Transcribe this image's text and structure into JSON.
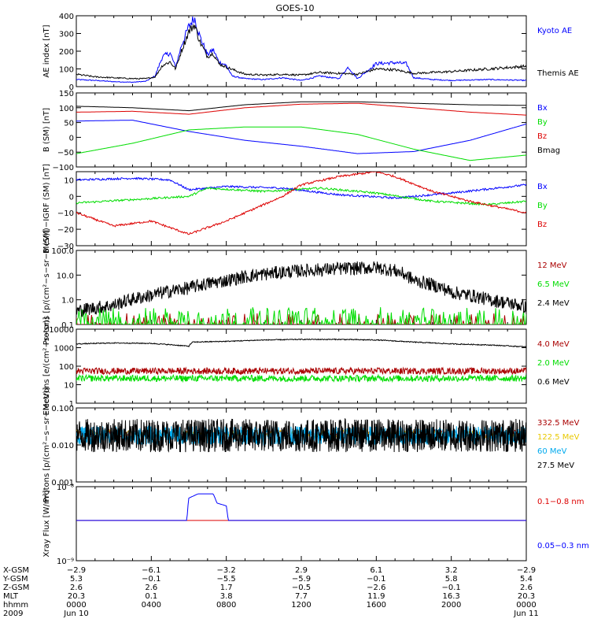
{
  "title": "GOES-10",
  "chart_data": [
    {
      "type": "line",
      "ylabel": "AE index [nT]",
      "ylim": [
        0,
        400
      ],
      "yticks": [
        0,
        100,
        200,
        300,
        400
      ],
      "ytick_labels": [
        "0",
        "100",
        "200",
        "300",
        "400"
      ],
      "x_hours": [
        0,
        24
      ],
      "series": [
        {
          "name": "Kyoto AE",
          "color": "#0000ff",
          "points": [
            [
              0,
              40
            ],
            [
              1,
              35
            ],
            [
              2,
              28
            ],
            [
              3,
              25
            ],
            [
              3.7,
              30
            ],
            [
              4.2,
              60
            ],
            [
              4.6,
              170
            ],
            [
              5,
              190
            ],
            [
              5.3,
              110
            ],
            [
              5.6,
              230
            ],
            [
              6,
              340
            ],
            [
              6.3,
              390
            ],
            [
              6.6,
              280
            ],
            [
              7,
              180
            ],
            [
              7.3,
              210
            ],
            [
              7.6,
              140
            ],
            [
              8,
              120
            ],
            [
              8.3,
              60
            ],
            [
              9,
              45
            ],
            [
              10,
              40
            ],
            [
              11,
              50
            ],
            [
              12,
              35
            ],
            [
              13,
              60
            ],
            [
              14,
              45
            ],
            [
              14.5,
              110
            ],
            [
              15,
              45
            ],
            [
              16,
              130
            ],
            [
              17,
              135
            ],
            [
              17.6,
              130
            ],
            [
              18,
              50
            ],
            [
              19,
              40
            ],
            [
              20,
              35
            ],
            [
              22,
              40
            ],
            [
              24,
              35
            ]
          ]
        },
        {
          "name": "Themis AE",
          "color": "#000000",
          "points": [
            [
              0,
              70
            ],
            [
              1,
              55
            ],
            [
              2,
              50
            ],
            [
              3,
              45
            ],
            [
              3.7,
              45
            ],
            [
              4.2,
              55
            ],
            [
              4.6,
              120
            ],
            [
              5,
              140
            ],
            [
              5.3,
              100
            ],
            [
              5.6,
              200
            ],
            [
              6,
              310
            ],
            [
              6.3,
              350
            ],
            [
              6.6,
              250
            ],
            [
              7,
              170
            ],
            [
              7.3,
              190
            ],
            [
              7.6,
              130
            ],
            [
              8,
              110
            ],
            [
              9,
              70
            ],
            [
              10,
              65
            ],
            [
              11,
              70
            ],
            [
              12,
              65
            ],
            [
              13,
              80
            ],
            [
              14,
              75
            ],
            [
              15,
              70
            ],
            [
              16,
              100
            ],
            [
              17,
              95
            ],
            [
              18,
              75
            ],
            [
              19,
              80
            ],
            [
              20,
              85
            ],
            [
              22,
              100
            ],
            [
              24,
              115
            ]
          ]
        }
      ]
    },
    {
      "type": "line",
      "ylabel": "B (SM) [nT]",
      "ylim": [
        -100,
        150
      ],
      "yticks": [
        -100,
        -50,
        0,
        50,
        100,
        150
      ],
      "ytick_labels": [
        "−100",
        "−50",
        "0",
        "50",
        "100",
        "150"
      ],
      "x_hours": [
        0,
        24
      ],
      "series": [
        {
          "name": "Bx",
          "color": "#0000ff",
          "points": [
            [
              0,
              55
            ],
            [
              3,
              58
            ],
            [
              6,
              20
            ],
            [
              9,
              -10
            ],
            [
              12,
              -30
            ],
            [
              15,
              -55
            ],
            [
              18,
              -48
            ],
            [
              21,
              -10
            ],
            [
              24,
              45
            ]
          ]
        },
        {
          "name": "By",
          "color": "#00dd00",
          "points": [
            [
              0,
              -55
            ],
            [
              3,
              -20
            ],
            [
              6,
              25
            ],
            [
              9,
              35
            ],
            [
              12,
              35
            ],
            [
              15,
              10
            ],
            [
              18,
              -40
            ],
            [
              21,
              -78
            ],
            [
              24,
              -60
            ]
          ]
        },
        {
          "name": "Bz",
          "color": "#dd0000",
          "points": [
            [
              0,
              85
            ],
            [
              3,
              88
            ],
            [
              6,
              78
            ],
            [
              9,
              100
            ],
            [
              12,
              112
            ],
            [
              15,
              115
            ],
            [
              18,
              100
            ],
            [
              21,
              85
            ],
            [
              24,
              75
            ]
          ]
        },
        {
          "name": "Bmag",
          "color": "#000000",
          "points": [
            [
              0,
              105
            ],
            [
              3,
              100
            ],
            [
              6,
              90
            ],
            [
              9,
              110
            ],
            [
              12,
              120
            ],
            [
              15,
              120
            ],
            [
              18,
              115
            ],
            [
              21,
              110
            ],
            [
              24,
              108
            ]
          ]
        }
      ]
    },
    {
      "type": "line",
      "ylabel": "B (SM)−IGRF (SM) [nT]",
      "ylim": [
        -30,
        15
      ],
      "yticks": [
        -30,
        -20,
        -10,
        0,
        10
      ],
      "ytick_labels": [
        "−30",
        "−20",
        "−10",
        "0",
        "10"
      ],
      "x_hours": [
        0,
        24
      ],
      "series": [
        {
          "name": "Bx",
          "color": "#0000ff",
          "points": [
            [
              0,
              10
            ],
            [
              3,
              11
            ],
            [
              5,
              10
            ],
            [
              6,
              4
            ],
            [
              8,
              6
            ],
            [
              11,
              5
            ],
            [
              14,
              1
            ],
            [
              17,
              -1
            ],
            [
              20,
              2
            ],
            [
              24,
              7
            ]
          ]
        },
        {
          "name": "By",
          "color": "#00dd00",
          "points": [
            [
              0,
              -4
            ],
            [
              3,
              -2
            ],
            [
              6,
              0
            ],
            [
              7,
              5
            ],
            [
              10,
              3
            ],
            [
              13,
              5
            ],
            [
              16,
              2
            ],
            [
              19,
              -3
            ],
            [
              22,
              -5
            ],
            [
              24,
              -3
            ]
          ]
        },
        {
          "name": "Bz",
          "color": "#dd0000",
          "points": [
            [
              0,
              -10
            ],
            [
              2,
              -18
            ],
            [
              4,
              -15
            ],
            [
              6,
              -23
            ],
            [
              8,
              -15
            ],
            [
              10,
              -5
            ],
            [
              11,
              0
            ],
            [
              12,
              7
            ],
            [
              14,
              12
            ],
            [
              16,
              15
            ],
            [
              17,
              12
            ],
            [
              19,
              3
            ],
            [
              21,
              -3
            ],
            [
              24,
              -10
            ]
          ]
        }
      ]
    },
    {
      "type": "line",
      "ylabel": "Protons [p/(cm²−s−sr−MeV)]",
      "ylog": true,
      "ylim": [
        0.1,
        100
      ],
      "yticks": [
        0.1,
        1,
        10,
        100
      ],
      "ytick_labels": [
        "0.1",
        "1.0",
        "10.0",
        "100.0"
      ],
      "x_hours": [
        0,
        24
      ],
      "series": [
        {
          "name": "12 MeV",
          "color": "#aa0000",
          "points": []
        },
        {
          "name": "6.5 MeV",
          "color": "#00dd00",
          "points": []
        },
        {
          "name": "2.4 MeV",
          "color": "#000000",
          "points": [
            [
              0,
              0.35
            ],
            [
              2,
              0.6
            ],
            [
              4,
              1.5
            ],
            [
              6,
              3
            ],
            [
              8,
              6
            ],
            [
              10,
              11
            ],
            [
              12,
              15
            ],
            [
              14,
              18
            ],
            [
              16,
              20
            ],
            [
              17,
              15
            ],
            [
              18,
              6
            ],
            [
              20,
              2
            ],
            [
              22,
              1
            ],
            [
              24,
              0.5
            ]
          ]
        }
      ]
    },
    {
      "type": "line",
      "ylabel": "Electrons [e/(cm²−s−sr)]",
      "ylog": true,
      "ylim": [
        1,
        10000
      ],
      "yticks": [
        1,
        10,
        100,
        1000,
        10000
      ],
      "ytick_labels": [
        "1",
        "10",
        "100",
        "1000",
        "10000"
      ],
      "x_hours": [
        0,
        24
      ],
      "series": [
        {
          "name": "4.0 MeV",
          "color": "#aa0000",
          "points": []
        },
        {
          "name": "2.0 MeV",
          "color": "#00dd00",
          "points": []
        },
        {
          "name": "0.6 MeV",
          "color": "#000000",
          "points": [
            [
              0,
              1600
            ],
            [
              2,
              1800
            ],
            [
              4,
              1700
            ],
            [
              6,
              1200
            ],
            [
              6.2,
              2000
            ],
            [
              8,
              2200
            ],
            [
              10,
              2600
            ],
            [
              12,
              2800
            ],
            [
              14,
              2800
            ],
            [
              16,
              2600
            ],
            [
              18,
              2000
            ],
            [
              20,
              1600
            ],
            [
              22,
              1400
            ],
            [
              24,
              1100
            ]
          ]
        }
      ]
    },
    {
      "type": "line",
      "ylabel": "Protons [p/(cm²−s−sr−MeV)]",
      "ylog": true,
      "ylim": [
        0.001,
        0.1
      ],
      "yticks": [
        0.001,
        0.01,
        0.1
      ],
      "ytick_labels": [
        "0.001",
        "0.010",
        "0.100"
      ],
      "x_hours": [
        0,
        24
      ],
      "series": [
        {
          "name": "332.5 MeV",
          "color": "#aa0000",
          "points": []
        },
        {
          "name": "122.5 MeV",
          "color": "#e8c800",
          "points": []
        },
        {
          "name": "60 MeV",
          "color": "#00aaee",
          "points": []
        },
        {
          "name": "27.5 MeV",
          "color": "#000000",
          "points": []
        }
      ]
    },
    {
      "type": "line",
      "ylabel": "Xray Flux [W/m²]",
      "ylog": true,
      "ylim": [
        1e-09,
        1e-08
      ],
      "yticks": [
        1e-09,
        1e-08
      ],
      "ytick_labels": [
        "10⁻⁹",
        "10⁻⁸"
      ],
      "x_hours": [
        0,
        24
      ],
      "series": [
        {
          "name": "0.1−0.8 nm",
          "color": "#dd0000",
          "points": [
            [
              0,
              3.5e-09
            ],
            [
              24,
              3.5e-09
            ]
          ]
        },
        {
          "name": "0.05−0.3 nm",
          "color": "#0000ff",
          "points": [
            [
              0,
              3.5e-09
            ],
            [
              5.9,
              3.5e-09
            ],
            [
              6,
              7e-09
            ],
            [
              6.5,
              8e-09
            ],
            [
              7.3,
              8e-09
            ],
            [
              7.5,
              6e-09
            ],
            [
              8,
              5.5e-09
            ],
            [
              8.1,
              3.5e-09
            ],
            [
              24,
              3.5e-09
            ]
          ]
        }
      ]
    }
  ],
  "ephemeris": {
    "row_labels": [
      "X-GSM",
      "Y-GSM",
      "Z-GSM",
      "MLT",
      "hhmm",
      "2009"
    ],
    "columns": [
      [
        "−2.9",
        "5.3",
        "2.6",
        "20.3",
        "0000",
        "Jun 10"
      ],
      [
        "−6.1",
        "−0.1",
        "2.6",
        "0.1",
        "0400",
        ""
      ],
      [
        "−3.2",
        "−5.5",
        "1.7",
        "3.8",
        "0800",
        ""
      ],
      [
        "2.9",
        "−5.9",
        "−0.5",
        "7.7",
        "1200",
        ""
      ],
      [
        "6.1",
        "−0.1",
        "−2.6",
        "11.9",
        "1600",
        ""
      ],
      [
        "3.2",
        "5.8",
        "−0.1",
        "16.3",
        "2000",
        ""
      ],
      [
        "−2.9",
        "5.4",
        "2.6",
        "20.3",
        "0000",
        "Jun 11"
      ]
    ]
  }
}
